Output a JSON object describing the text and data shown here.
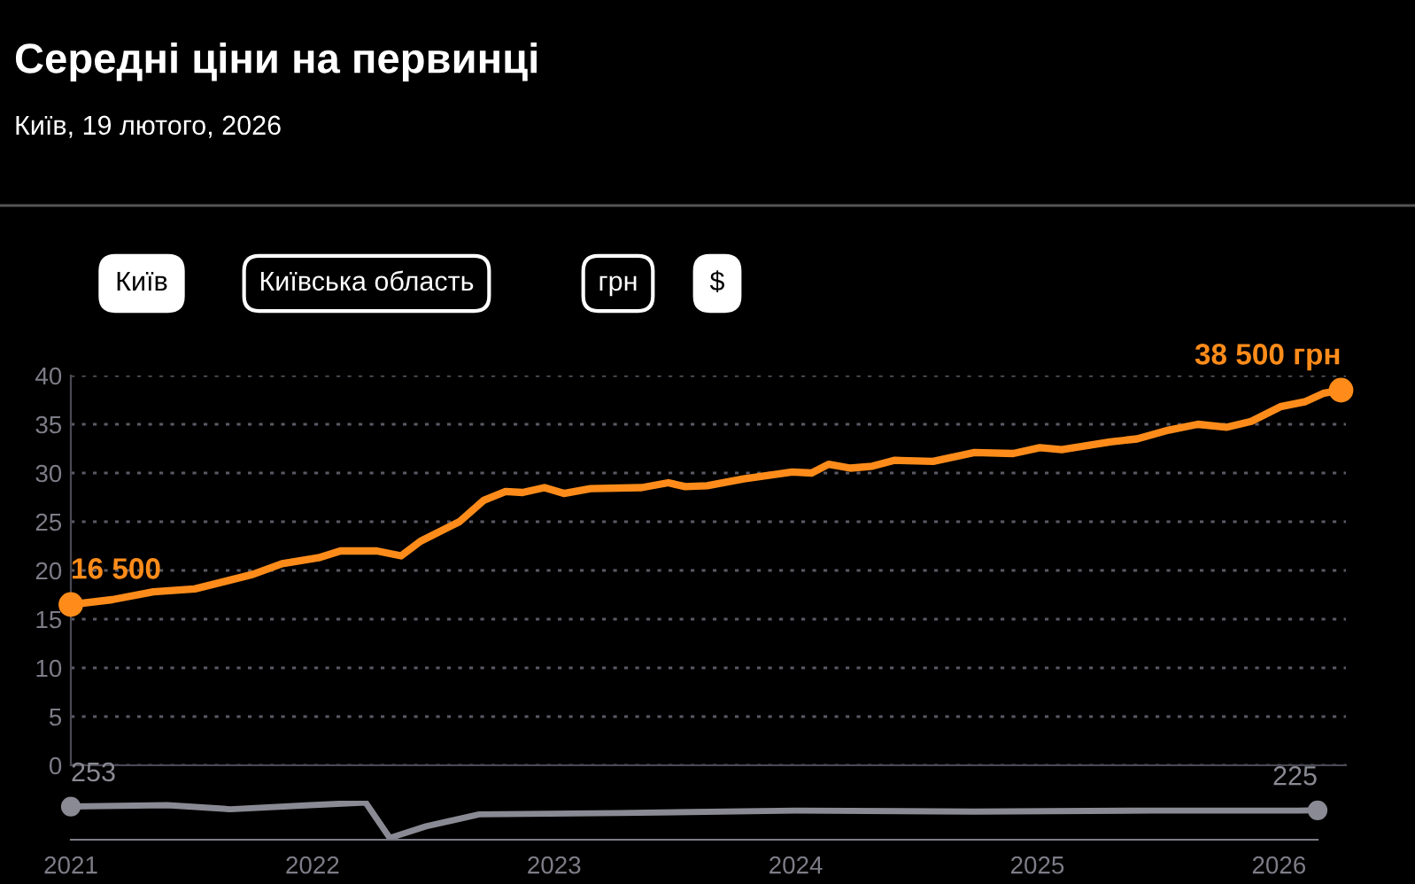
{
  "chart_data": [
    {
      "type": "line",
      "title": "Середні ціни на первинці",
      "subtitle": "Київ, 19 лютого, 2026",
      "annotations": [
        "Київ",
        "Київська область",
        "грн",
        "$",
        {
          "text": "16 500",
          "x": 2021.0,
          "y": 16.5
        },
        {
          "text": "38 500 грн",
          "x": 2026.23,
          "y": 38.5
        }
      ],
      "x": [
        2021.0,
        2021.17,
        2021.34,
        2021.51,
        2021.75,
        2021.87,
        2022.02,
        2022.11,
        2022.26,
        2022.36,
        2022.44,
        2022.6,
        2022.7,
        2022.79,
        2022.86,
        2022.95,
        2023.03,
        2023.14,
        2023.35,
        2023.46,
        2023.53,
        2023.62,
        2023.77,
        2023.97,
        2024.05,
        2024.12,
        2024.21,
        2024.3,
        2024.39,
        2024.55,
        2024.72,
        2024.88,
        2024.99,
        2025.08,
        2025.28,
        2025.39,
        2025.52,
        2025.64,
        2025.76,
        2025.86,
        2025.98,
        2026.08,
        2026.16,
        2026.23
      ],
      "series": [
        {
          "color": "#ff8c1a",
          "values": [
            16.5,
            17.0,
            17.8,
            18.1,
            19.6,
            20.7,
            21.3,
            22.0,
            22.0,
            21.5,
            23.0,
            25.0,
            27.2,
            28.1,
            28.0,
            28.5,
            27.9,
            28.4,
            28.5,
            29.0,
            28.6,
            28.7,
            29.4,
            30.1,
            30.0,
            30.9,
            30.5,
            30.7,
            31.3,
            31.2,
            32.1,
            32.0,
            32.6,
            32.4,
            33.2,
            33.5,
            34.4,
            35.0,
            34.7,
            35.3,
            36.8,
            37.3,
            38.2,
            38.5
          ]
        }
      ],
      "xlim": [
        2021.0,
        2026.25
      ],
      "xticks": [
        2021,
        2022,
        2023,
        2024,
        2025,
        2026
      ],
      "ylim": [
        0,
        40
      ],
      "yticks": [
        0,
        5,
        10,
        15,
        20,
        25,
        30,
        35,
        40
      ],
      "grid": "y",
      "line_style": "solid",
      "tick_labels": "y"
    },
    {
      "type": "line",
      "x": [
        2021.0,
        2021.4,
        2021.66,
        2021.99,
        2022.22,
        2022.32,
        2022.47,
        2022.69,
        2023.27,
        2024.0,
        2024.74,
        2025.47,
        2026.08,
        2026.16
      ],
      "series": [
        {
          "color": "#8a8a94",
          "values": [
            253,
            263,
            233,
            263,
            283,
            20,
            106,
            195,
            205,
            223,
            215,
            223,
            223,
            225
          ],
          "value_labels": [
            "253",
            null,
            null,
            null,
            null,
            null,
            null,
            null,
            null,
            null,
            null,
            null,
            null,
            "225"
          ]
        }
      ],
      "xlim": [
        2021.0,
        2026.16
      ],
      "xticks": [
        2021,
        2022,
        2023,
        2024,
        2025,
        2026
      ],
      "line_style": "solid",
      "tick_labels": "x"
    }
  ]
}
